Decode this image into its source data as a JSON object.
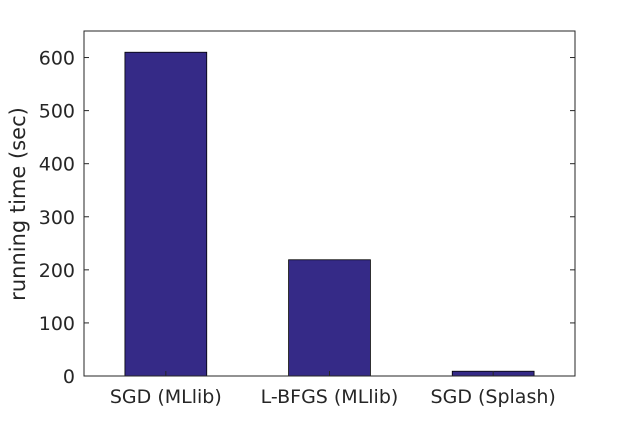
{
  "chart_data": {
    "type": "bar",
    "title": "",
    "xlabel": "",
    "ylabel": "running time (sec)",
    "categories": [
      "SGD (MLlib)",
      "L-BFGS (MLlib)",
      "SGD (Splash)"
    ],
    "values": [
      610,
      219,
      9
    ],
    "ylim": [
      0,
      650
    ],
    "yticks": [
      0,
      100,
      200,
      300,
      400,
      500,
      600
    ],
    "grid": false,
    "legend": "none",
    "bar_color": "#352a87"
  }
}
